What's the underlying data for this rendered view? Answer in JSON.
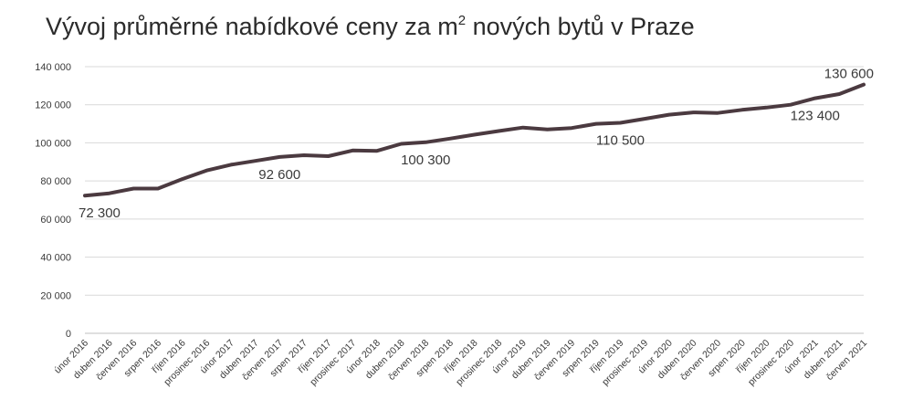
{
  "chart_data": {
    "type": "line",
    "title": "Vývoj průměrné nabídkové ceny za m",
    "title_sup": "2",
    "title_tail": " nových bytů v Praze",
    "ylim": [
      0,
      140000
    ],
    "yticks": [
      0,
      20000,
      40000,
      60000,
      80000,
      100000,
      120000,
      140000
    ],
    "ytick_labels": [
      "0",
      "20 000",
      "40 000",
      "60 000",
      "80 000",
      "100 000",
      "120 000",
      "140 000"
    ],
    "grid": true,
    "legend": "none",
    "line_color": "#4b3a40",
    "categories": [
      "únor 2016",
      "duben 2016",
      "červen 2016",
      "srpen 2016",
      "říjen 2016",
      "prosinec 2016",
      "únor 2017",
      "duben 2017",
      "červen 2017",
      "srpen 2017",
      "říjen 2017",
      "prosinec 2017",
      "únor 2018",
      "duben 2018",
      "červen 2018",
      "srpen 2018",
      "říjen 2018",
      "prosinec 2018",
      "únor 2019",
      "duben 2019",
      "červen 2019",
      "srpen 2019",
      "říjen 2019",
      "prosinec 2019",
      "únor 2020",
      "duben 2020",
      "červen 2020",
      "srpen 2020",
      "říjen 2020",
      "prosinec 2020",
      "únor 2021",
      "duben 2021",
      "červen 2021"
    ],
    "series": [
      {
        "values": [
          72300,
          73500,
          76000,
          76000,
          81000,
          85500,
          88500,
          90500,
          92600,
          93500,
          93000,
          96000,
          95800,
          99500,
          100300,
          102200,
          104300,
          106200,
          108000,
          107000,
          107800,
          110000,
          110500,
          112600,
          114800,
          116000,
          115700,
          117300,
          118500,
          120000,
          123400,
          125600,
          130600
        ]
      }
    ],
    "annotations": [
      {
        "index": 0,
        "text": "72 300",
        "pos": "below"
      },
      {
        "index": 8,
        "text": "92 600",
        "pos": "below"
      },
      {
        "index": 14,
        "text": "100 300",
        "pos": "below"
      },
      {
        "index": 22,
        "text": "110 500",
        "pos": "below"
      },
      {
        "index": 30,
        "text": "123 400",
        "pos": "below"
      },
      {
        "index": 32,
        "text": "130 600",
        "pos": "above"
      }
    ]
  }
}
